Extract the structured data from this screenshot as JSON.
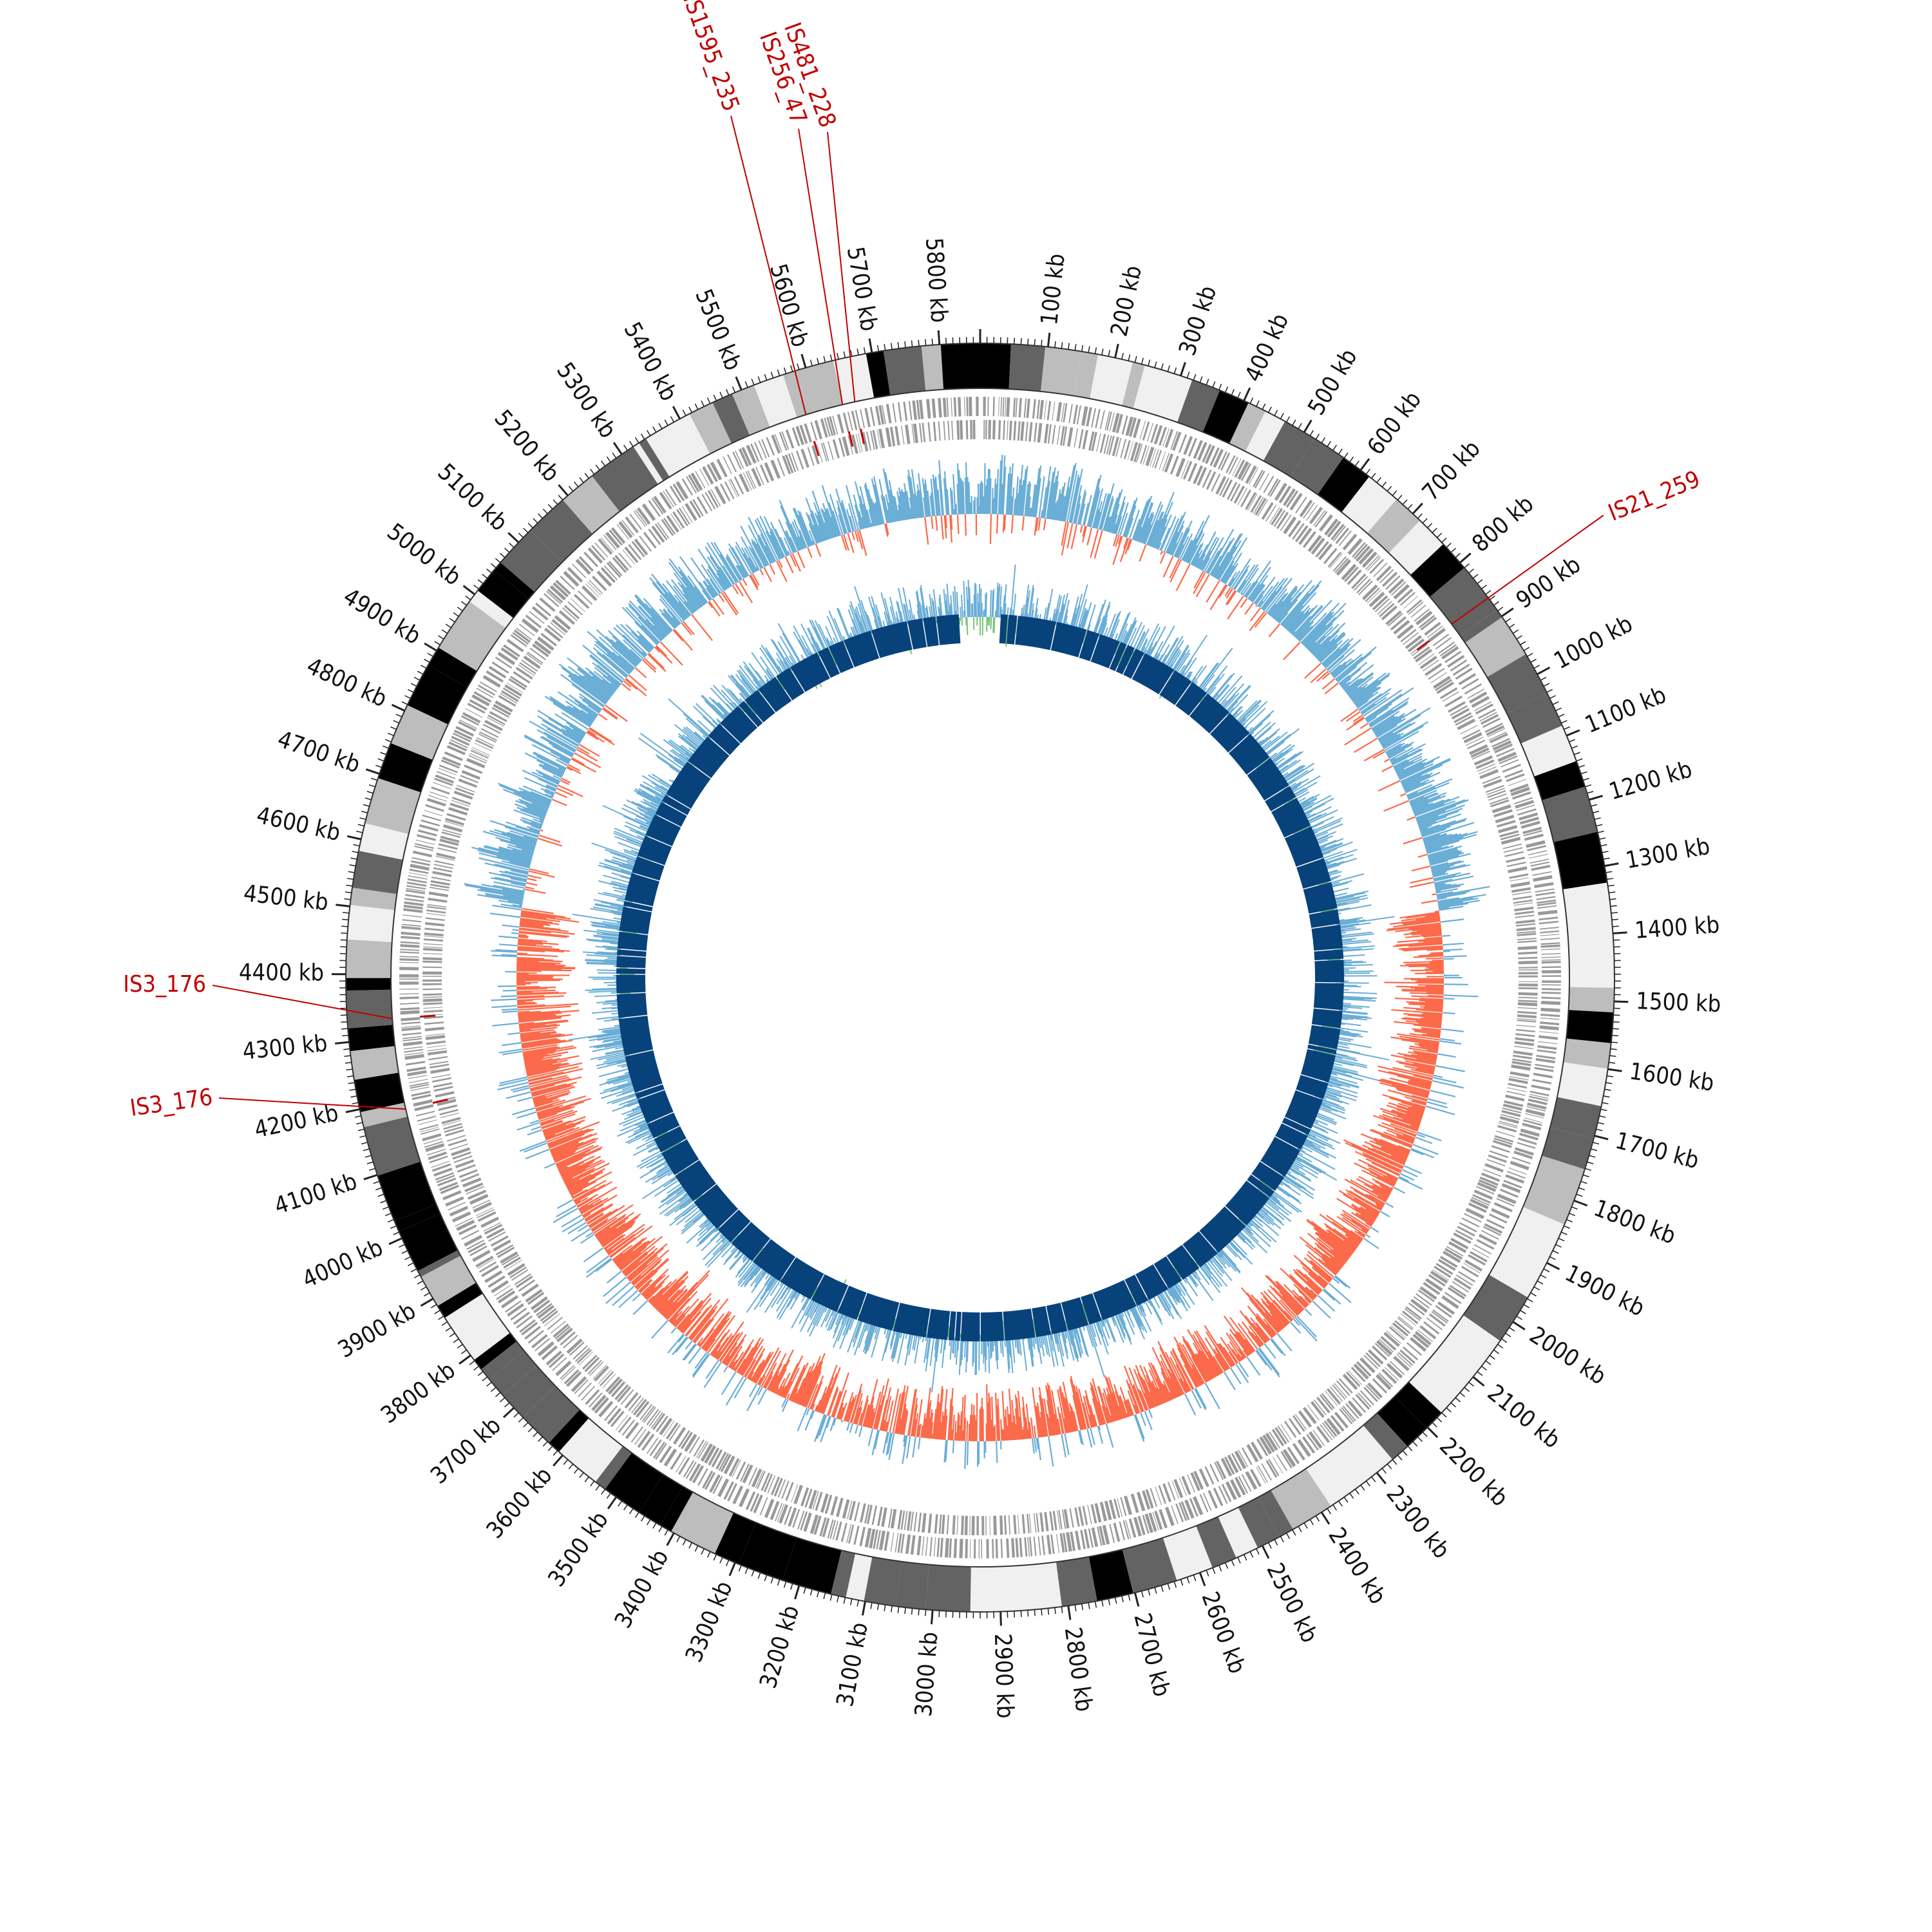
{
  "genome": {
    "length_kb": 5860,
    "unit": "kb",
    "tick_labels": [
      "100 kb",
      "200 kb",
      "300 kb",
      "400 kb",
      "500 kb",
      "600 kb",
      "700 kb",
      "800 kb",
      "900 kb",
      "1000 kb",
      "1100 kb",
      "1200 kb",
      "1300 kb",
      "1400 kb",
      "1500 kb",
      "1600 kb",
      "1700 kb",
      "1800 kb",
      "1900 kb",
      "2000 kb",
      "2100 kb",
      "2200 kb",
      "2300 kb",
      "2400 kb",
      "2500 kb",
      "2600 kb",
      "2700 kb",
      "2800 kb",
      "2900 kb",
      "3000 kb",
      "3100 kb",
      "3200 kb",
      "3300 kb",
      "3400 kb",
      "3500 kb",
      "3600 kb",
      "3700 kb",
      "3800 kb",
      "3900 kb",
      "4000 kb",
      "4100 kb",
      "4200 kb",
      "4300 kb",
      "4400 kb",
      "4500 kb",
      "4600 kb",
      "4700 kb",
      "4800 kb",
      "4900 kb",
      "5000 kb",
      "5100 kb",
      "5200 kb",
      "5300 kb",
      "5400 kb",
      "5500 kb",
      "5600 kb",
      "5700 kb",
      "5800 kb"
    ],
    "tick_positions_kb": [
      100,
      200,
      300,
      400,
      500,
      600,
      700,
      800,
      900,
      1000,
      1100,
      1200,
      1300,
      1400,
      1500,
      1600,
      1700,
      1800,
      1900,
      2000,
      2100,
      2200,
      2300,
      2400,
      2500,
      2600,
      2700,
      2800,
      2900,
      3000,
      3100,
      3200,
      3300,
      3400,
      3500,
      3600,
      3700,
      3800,
      3900,
      4000,
      4100,
      4200,
      4300,
      4400,
      4500,
      4600,
      4700,
      4800,
      4900,
      5000,
      5100,
      5200,
      5300,
      5400,
      5500,
      5600,
      5700,
      5800
    ]
  },
  "is_elements": [
    {
      "label": "IS481_228",
      "position_kb": 5660
    },
    {
      "label": "IS256_47",
      "position_kb": 5640
    },
    {
      "label": "IS1595_235",
      "position_kb": 5580
    },
    {
      "label": "IS21_259",
      "position_kb": 865
    },
    {
      "label": "IS3_176",
      "position_kb": 4330
    },
    {
      "label": "IS3_176",
      "position_kb": 4185
    }
  ],
  "colors": {
    "is_label": "#c00000",
    "gene_gray": "#999999",
    "gc_skew_positive": "#6baed6",
    "gc_skew_negative": "#fb6a4a",
    "gc_content": "#74c476",
    "inner_blocks": "#08427b",
    "band_shades": [
      "#f0f0f0",
      "#bdbdbd",
      "#636363",
      "#000000"
    ]
  },
  "tracks": [
    "ideogram-bands",
    "forward-cds",
    "reverse-cds",
    "gc-skew",
    "gc-content",
    "homology-blocks"
  ]
}
